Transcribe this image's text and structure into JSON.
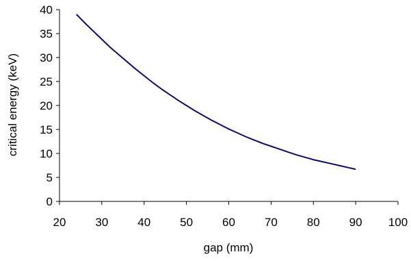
{
  "chart_data": {
    "type": "line",
    "title": "",
    "xlabel": "gap (mm)",
    "ylabel": "critical energy (keV)",
    "xlim": [
      20,
      100
    ],
    "ylim": [
      0,
      40
    ],
    "xticks": [
      20,
      30,
      40,
      50,
      60,
      70,
      80,
      90,
      100
    ],
    "yticks": [
      0,
      5,
      10,
      15,
      20,
      25,
      30,
      35,
      40
    ],
    "grid": false,
    "legend": "none",
    "series": [
      {
        "color": "#0a0a6e",
        "x": [
          24,
          26,
          28,
          30,
          32,
          34,
          36,
          38,
          40,
          42,
          44,
          46,
          48,
          50,
          52,
          54,
          56,
          58,
          60,
          62,
          64,
          66,
          68,
          70,
          72,
          74,
          76,
          78,
          80,
          82,
          84,
          86,
          88,
          90
        ],
        "y": [
          39.0,
          37.2,
          35.5,
          33.8,
          32.1,
          30.6,
          29.1,
          27.6,
          26.2,
          24.8,
          23.5,
          22.3,
          21.1,
          20.0,
          18.9,
          17.9,
          16.9,
          16.0,
          15.1,
          14.3,
          13.5,
          12.8,
          12.1,
          11.5,
          10.9,
          10.3,
          9.7,
          9.2,
          8.7,
          8.3,
          7.9,
          7.5,
          7.1,
          6.7
        ]
      }
    ]
  }
}
